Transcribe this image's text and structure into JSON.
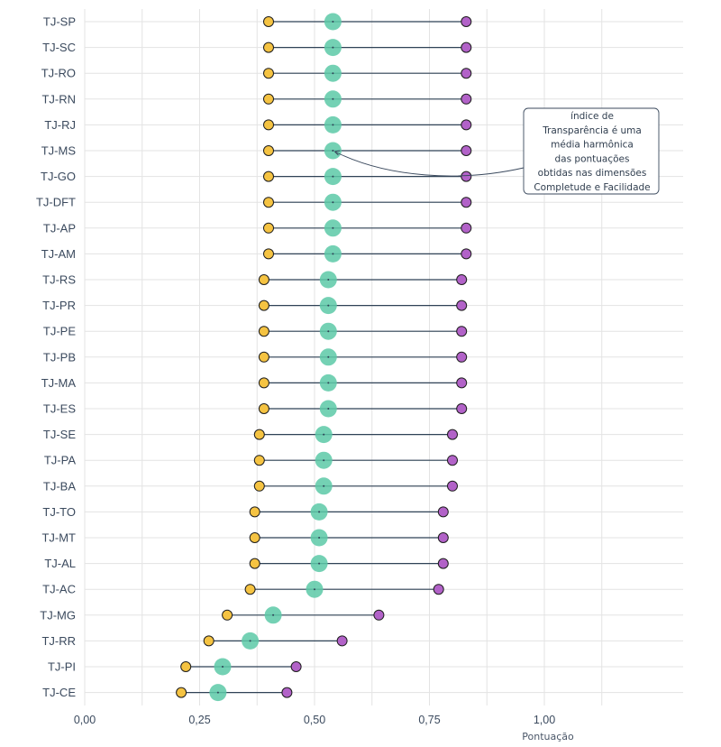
{
  "chart_data": {
    "type": "dumbbell",
    "title": "",
    "xlabel": "Pontuação",
    "ylabel": "",
    "xlim": [
      0,
      1.22
    ],
    "xticks": [
      0,
      0.25,
      0.5,
      0.75,
      1.0
    ],
    "xtick_labels": [
      "0,00",
      "0,25",
      "0,50",
      "0,75",
      "1,00"
    ],
    "grid": true,
    "categories": [
      "TJ-SP",
      "TJ-SC",
      "TJ-RO",
      "TJ-RN",
      "TJ-RJ",
      "TJ-MS",
      "TJ-GO",
      "TJ-DFT",
      "TJ-AP",
      "TJ-AM",
      "TJ-RS",
      "TJ-PR",
      "TJ-PE",
      "TJ-PB",
      "TJ-MA",
      "TJ-ES",
      "TJ-SE",
      "TJ-PA",
      "TJ-BA",
      "TJ-TO",
      "TJ-MT",
      "TJ-AL",
      "TJ-AC",
      "TJ-MG",
      "TJ-RR",
      "TJ-PI",
      "TJ-CE"
    ],
    "series": [
      {
        "key": "low",
        "color": "#f5c342",
        "values": [
          0.4,
          0.4,
          0.4,
          0.4,
          0.4,
          0.4,
          0.4,
          0.4,
          0.4,
          0.4,
          0.39,
          0.39,
          0.39,
          0.39,
          0.39,
          0.39,
          0.38,
          0.38,
          0.38,
          0.37,
          0.37,
          0.37,
          0.36,
          0.31,
          0.27,
          0.22,
          0.21
        ]
      },
      {
        "key": "mid",
        "color": "#5cc9a7",
        "values": [
          0.54,
          0.54,
          0.54,
          0.54,
          0.54,
          0.54,
          0.54,
          0.54,
          0.54,
          0.54,
          0.53,
          0.53,
          0.53,
          0.53,
          0.53,
          0.53,
          0.52,
          0.52,
          0.52,
          0.51,
          0.51,
          0.51,
          0.5,
          0.41,
          0.36,
          0.3,
          0.29
        ]
      },
      {
        "key": "high",
        "color": "#b262c8",
        "values": [
          0.83,
          0.83,
          0.83,
          0.83,
          0.83,
          0.83,
          0.83,
          0.83,
          0.83,
          0.83,
          0.82,
          0.82,
          0.82,
          0.82,
          0.82,
          0.82,
          0.8,
          0.8,
          0.8,
          0.78,
          0.78,
          0.78,
          0.77,
          0.64,
          0.56,
          0.46,
          0.44
        ]
      }
    ],
    "annotation": {
      "lines": [
        "índice de",
        "Transparência é uma",
        "média harmônica",
        "das pontuações",
        "obtidas nas dimensões",
        "Completude e Facilidade"
      ],
      "points_to": "TJ-MS"
    }
  }
}
